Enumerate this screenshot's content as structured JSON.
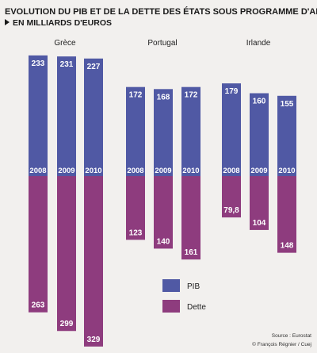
{
  "chart_data": {
    "type": "bar",
    "title": "EVOLUTION DU PIB ET DE LA DETTE DES ÉTATS SOUS PROGRAMME D'AIDE",
    "subtitle": "EN MILLIARDS D'EUROS",
    "years": [
      "2008",
      "2009",
      "2010"
    ],
    "groups": [
      {
        "name": "Grèce",
        "pib": [
          233,
          231,
          227
        ],
        "dette": [
          263,
          299,
          329
        ],
        "dette_labels": [
          "263",
          "299",
          "329"
        ]
      },
      {
        "name": "Portugal",
        "pib": [
          172,
          168,
          172
        ],
        "dette": [
          123,
          140,
          161
        ],
        "dette_labels": [
          "123",
          "140",
          "161"
        ]
      },
      {
        "name": "Irlande",
        "pib": [
          179,
          160,
          155
        ],
        "dette": [
          79.8,
          104,
          148
        ],
        "dette_labels": [
          "79,8",
          "104",
          "148"
        ]
      }
    ],
    "series": [
      {
        "name": "PIB",
        "color": "#5059a4"
      },
      {
        "name": "Dette",
        "color": "#8e3c7e"
      }
    ],
    "legend": "bottom-center",
    "source": "Source : Eurostat",
    "credit": "© François Régnier / Cuej"
  }
}
